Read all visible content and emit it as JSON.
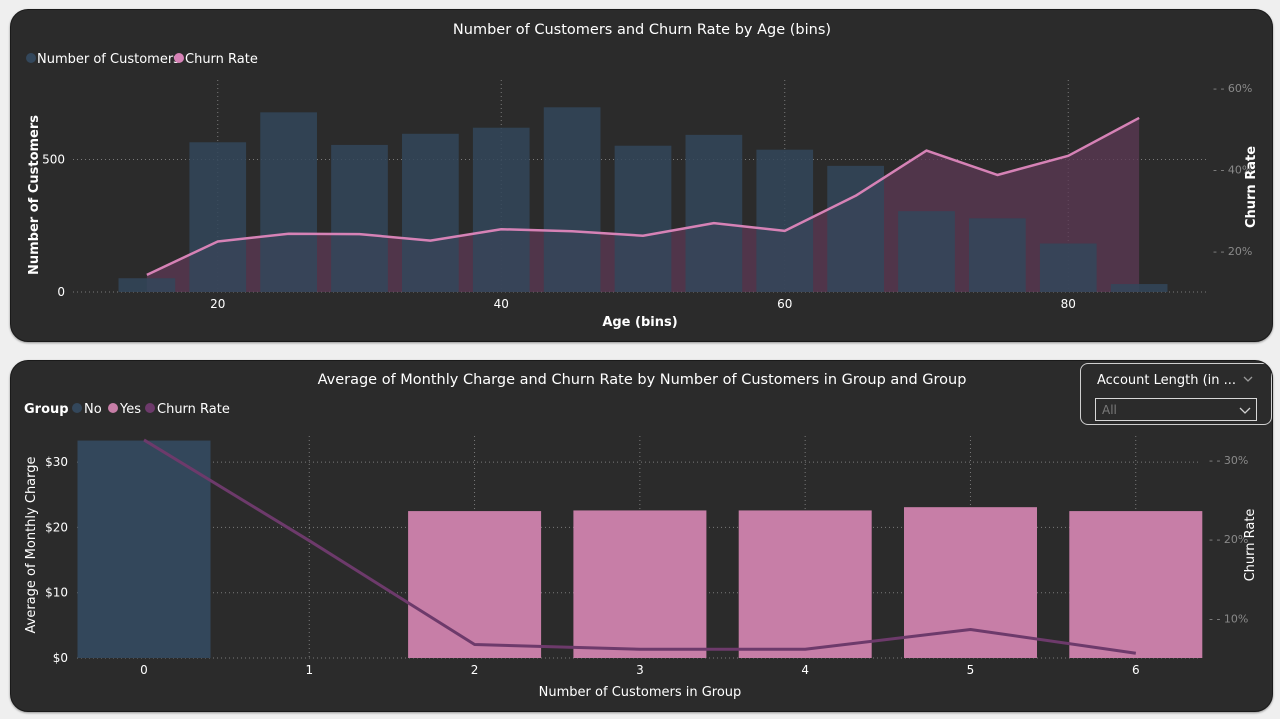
{
  "chart_data": [
    {
      "type": "bar",
      "title": "Number of Customers and Churn Rate by Age (bins)",
      "legend": [
        "Number of Customers",
        "Churn Rate"
      ],
      "xlabel": "Age (bins)",
      "ylabel": "Number of Customers",
      "y2label": "Churn Rate",
      "x_ticks": [
        "20",
        "40",
        "60",
        "80"
      ],
      "y_ticks": [
        "0",
        "500"
      ],
      "y2_ticks": [
        "20%",
        "40%",
        "60%"
      ],
      "xlim": [
        10,
        90
      ],
      "ylim": [
        0,
        800
      ],
      "y2lim": [
        0.1,
        0.62
      ],
      "categories": [
        15,
        20,
        25,
        30,
        35,
        40,
        45,
        50,
        55,
        60,
        65,
        70,
        75,
        80,
        85
      ],
      "series": [
        {
          "name": "Number of Customers",
          "kind": "bar",
          "values": [
            52,
            565,
            678,
            555,
            597,
            620,
            697,
            552,
            593,
            537,
            476,
            305,
            278,
            183,
            30
          ]
        },
        {
          "name": "Churn Rate",
          "kind": "line",
          "axis": "y2",
          "values": [
            0.142,
            0.224,
            0.243,
            0.242,
            0.226,
            0.254,
            0.249,
            0.238,
            0.269,
            0.25,
            0.336,
            0.447,
            0.387,
            0.434,
            0.527
          ]
        }
      ],
      "colors": {
        "bars": "#33475b",
        "line": "#d682b6",
        "line_area": "#5e3a55"
      }
    },
    {
      "type": "bar",
      "title": "Average of Monthly Charge and Churn Rate by Number of Customers in Group and Group",
      "legend_title": "Group",
      "legend": [
        "No",
        "Yes",
        "Churn Rate"
      ],
      "xlabel": "Number of Customers in Group",
      "ylabel": "Average of Monthly Charge",
      "y2label": "Churn Rate",
      "x_ticks": [
        "0",
        "1",
        "2",
        "3",
        "4",
        "5",
        "6"
      ],
      "y_ticks": [
        "$0",
        "$10",
        "$20",
        "$30"
      ],
      "y2_ticks": [
        "10%",
        "20%",
        "30%"
      ],
      "ylim": [
        0,
        34
      ],
      "y2lim": [
        0.05,
        0.33
      ],
      "categories": [
        0,
        1,
        2,
        3,
        4,
        5,
        6
      ],
      "series": [
        {
          "name": "No",
          "kind": "bar",
          "values": [
            33.3,
            null,
            null,
            null,
            null,
            null,
            null
          ]
        },
        {
          "name": "Yes",
          "kind": "bar",
          "values": [
            null,
            null,
            22.5,
            22.6,
            22.6,
            23.1,
            22.5
          ]
        },
        {
          "name": "Churn Rate",
          "kind": "line",
          "axis": "y2",
          "values": [
            0.325,
            0.198,
            0.067,
            0.061,
            0.061,
            0.086,
            0.056
          ]
        }
      ],
      "colors": {
        "no": "#33475b",
        "yes": "#c77ea7",
        "line": "#6d3a6b"
      }
    }
  ],
  "slicer": {
    "title": "Account Length (in ...",
    "value": "All"
  },
  "colors": {
    "background": "#efefef",
    "panel": "#2b2b2b",
    "text": "#ffffff"
  }
}
